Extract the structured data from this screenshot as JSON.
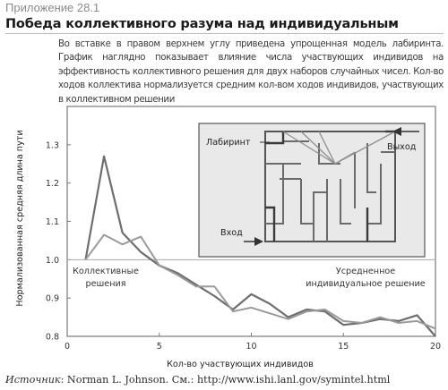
{
  "header": {
    "appendix": "Приложение 28.1",
    "title": "Победа коллективного разума над индивидуальным",
    "description": "Во вставке в правом верхнем углу приведена упрощенная модель лабиринта. График наглядно показывает влияние числа участвующих индивидов на эффективность коллективного решения для двух наборов случайных чисел. Кол-во ходов коллектива нормализуется средним кол-вом ходов индивидов, участвующих в коллективном решении"
  },
  "source": {
    "label": "Источник",
    "text": ": Norman L. Johnson. См.: http://www.ishi.lanl.gov/symintel.html"
  },
  "chart_data": {
    "type": "line",
    "xlabel": "Кол-во участвующих индивидов",
    "ylabel": "Нормализованная средняя длина пути",
    "xlim": [
      0,
      20
    ],
    "ylim": [
      0.8,
      1.4
    ],
    "x_ticks": [
      "0",
      "5",
      "10",
      "15",
      "20"
    ],
    "y_ticks": [
      "0.8",
      "0.9",
      "1.0",
      "1.1",
      "1.2",
      "1.3"
    ],
    "reference_line": 1.0,
    "annotations": {
      "collective": [
        "Коллективные",
        "решения"
      ],
      "individual": [
        "Усредненное",
        "индивидуальное решение"
      ]
    },
    "inset": {
      "labyrinth": "Лабиринт",
      "exit": "Выход",
      "entrance": "Вход"
    },
    "series": [
      {
        "name": "",
        "color": "#6e6e6e",
        "x": [
          1,
          2,
          3,
          4,
          5,
          6,
          7,
          8,
          9,
          10,
          11,
          12,
          13,
          14,
          15,
          16,
          17,
          18,
          19,
          20
        ],
        "y": [
          1.0,
          1.27,
          1.07,
          1.02,
          0.985,
          0.965,
          0.935,
          0.905,
          0.87,
          0.91,
          0.885,
          0.85,
          0.87,
          0.865,
          0.83,
          0.835,
          0.845,
          0.84,
          0.855,
          0.8
        ]
      },
      {
        "name": "",
        "color": "#9a9a9a",
        "x": [
          1,
          2,
          3,
          4,
          5,
          6,
          7,
          8,
          9,
          10,
          11,
          12,
          13,
          14,
          15,
          16,
          17,
          18,
          19,
          20
        ],
        "y": [
          1.0,
          1.065,
          1.04,
          1.06,
          0.985,
          0.96,
          0.93,
          0.93,
          0.865,
          0.875,
          0.86,
          0.845,
          0.865,
          0.87,
          0.84,
          0.835,
          0.85,
          0.835,
          0.84,
          0.82
        ]
      }
    ]
  },
  "colors": {
    "frame": "#7a7a7a",
    "inset_bg": "#e9e9e9",
    "maze_dark": "#444444",
    "maze_light": "#8a8a8a"
  }
}
